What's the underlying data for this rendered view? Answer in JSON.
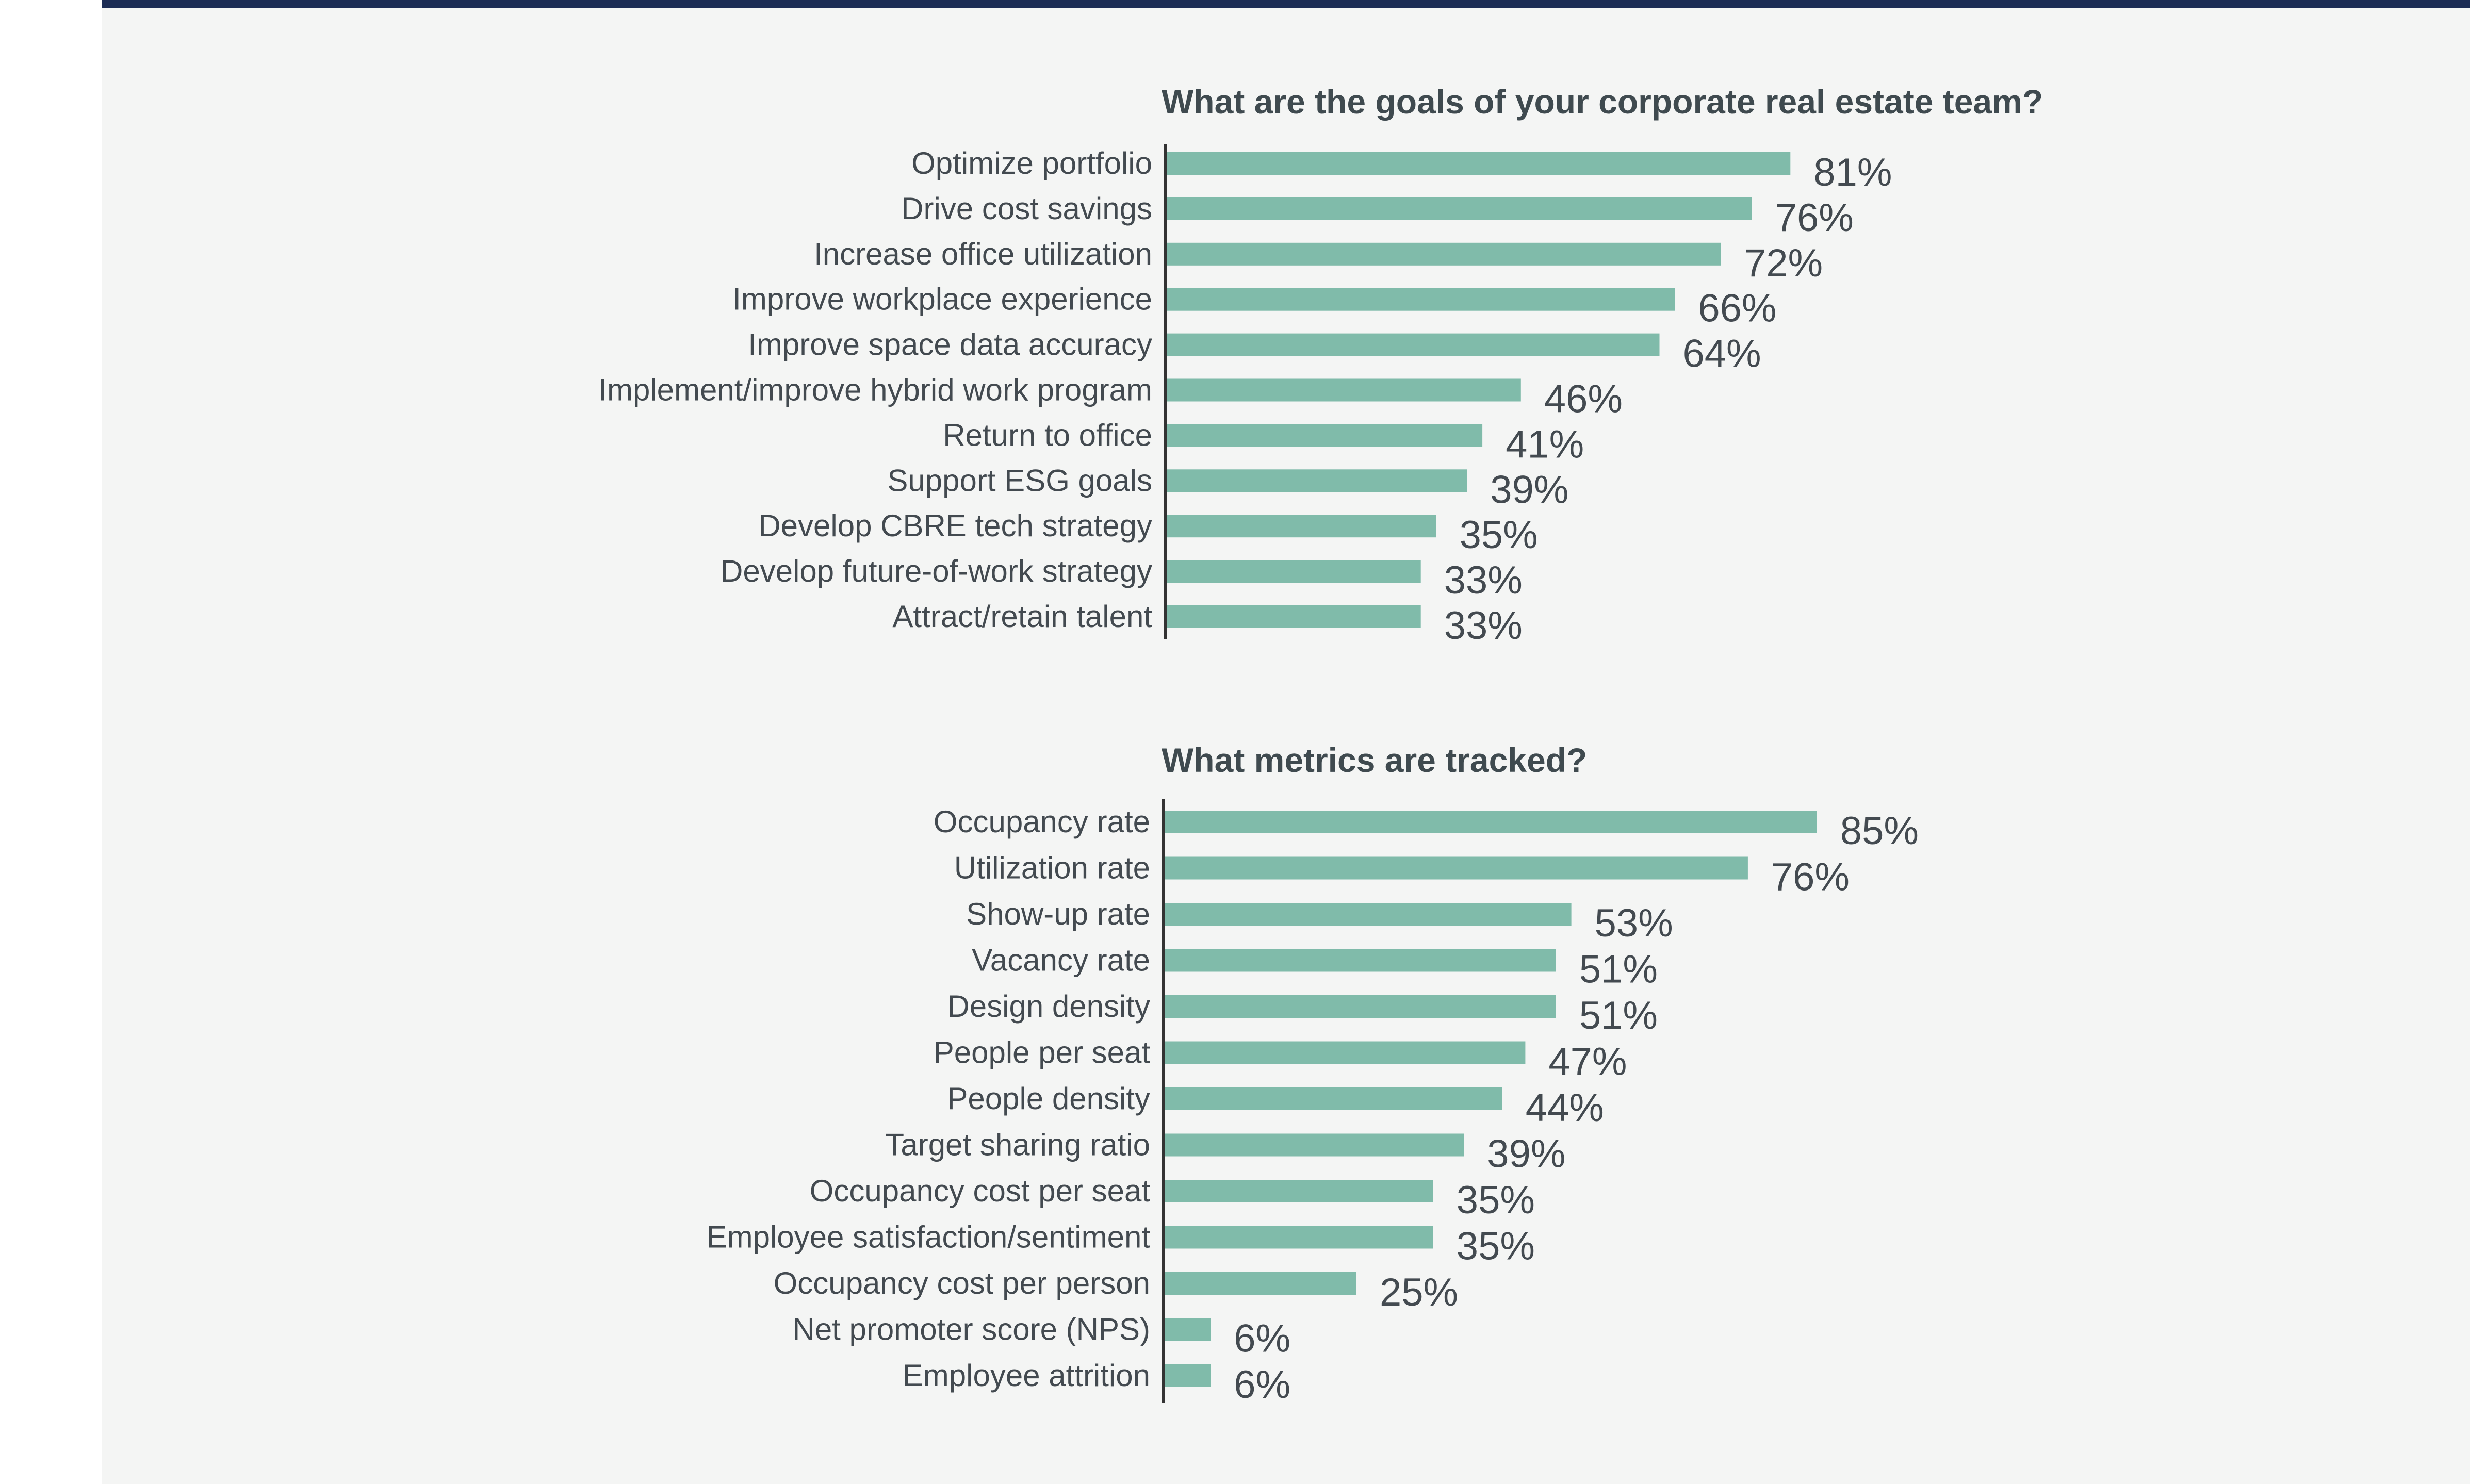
{
  "colors": {
    "background": "#f4f5f4",
    "top_rule": "#1c2d55",
    "bar": "#80bbaa",
    "axis": "#333333",
    "text": "#434a50",
    "title": "#3f4a4f"
  },
  "chart_data": [
    {
      "type": "bar",
      "orientation": "horizontal",
      "title": "What are the goals of your corporate real estate team?",
      "categories": [
        "Optimize portfolio",
        "Drive cost savings",
        "Increase office utilization",
        "Improve workplace experience",
        "Improve space data accuracy",
        "Implement/improve hybrid work program",
        "Return to office",
        "Support ESG goals",
        "Develop CBRE tech strategy",
        "Develop future-of-work strategy",
        "Attract/retain talent"
      ],
      "values": [
        81,
        76,
        72,
        66,
        64,
        46,
        41,
        39,
        35,
        33,
        33
      ],
      "value_labels": [
        "81%",
        "76%",
        "72%",
        "66%",
        "64%",
        "46%",
        "41%",
        "39%",
        "35%",
        "33%",
        "33%"
      ],
      "unit": "%",
      "xlim": [
        0,
        100
      ],
      "grid": false,
      "legend": "none"
    },
    {
      "type": "bar",
      "orientation": "horizontal",
      "title": "What metrics are tracked?",
      "categories": [
        "Occupancy rate",
        "Utilization rate",
        "Show-up rate",
        "Vacancy rate",
        "Design density",
        "People per seat",
        "People density",
        "Target sharing ratio",
        "Occupancy cost per seat",
        "Employee satisfaction/sentiment",
        "Occupancy cost per person",
        "Net promoter score (NPS)",
        "Employee attrition"
      ],
      "values": [
        85,
        76,
        53,
        51,
        51,
        47,
        44,
        39,
        35,
        35,
        25,
        6,
        6
      ],
      "value_labels": [
        "85%",
        "76%",
        "53%",
        "51%",
        "51%",
        "47%",
        "44%",
        "39%",
        "35%",
        "35%",
        "25%",
        "6%",
        "6%"
      ],
      "unit": "%",
      "xlim": [
        0,
        100
      ],
      "grid": false,
      "legend": "none"
    }
  ]
}
